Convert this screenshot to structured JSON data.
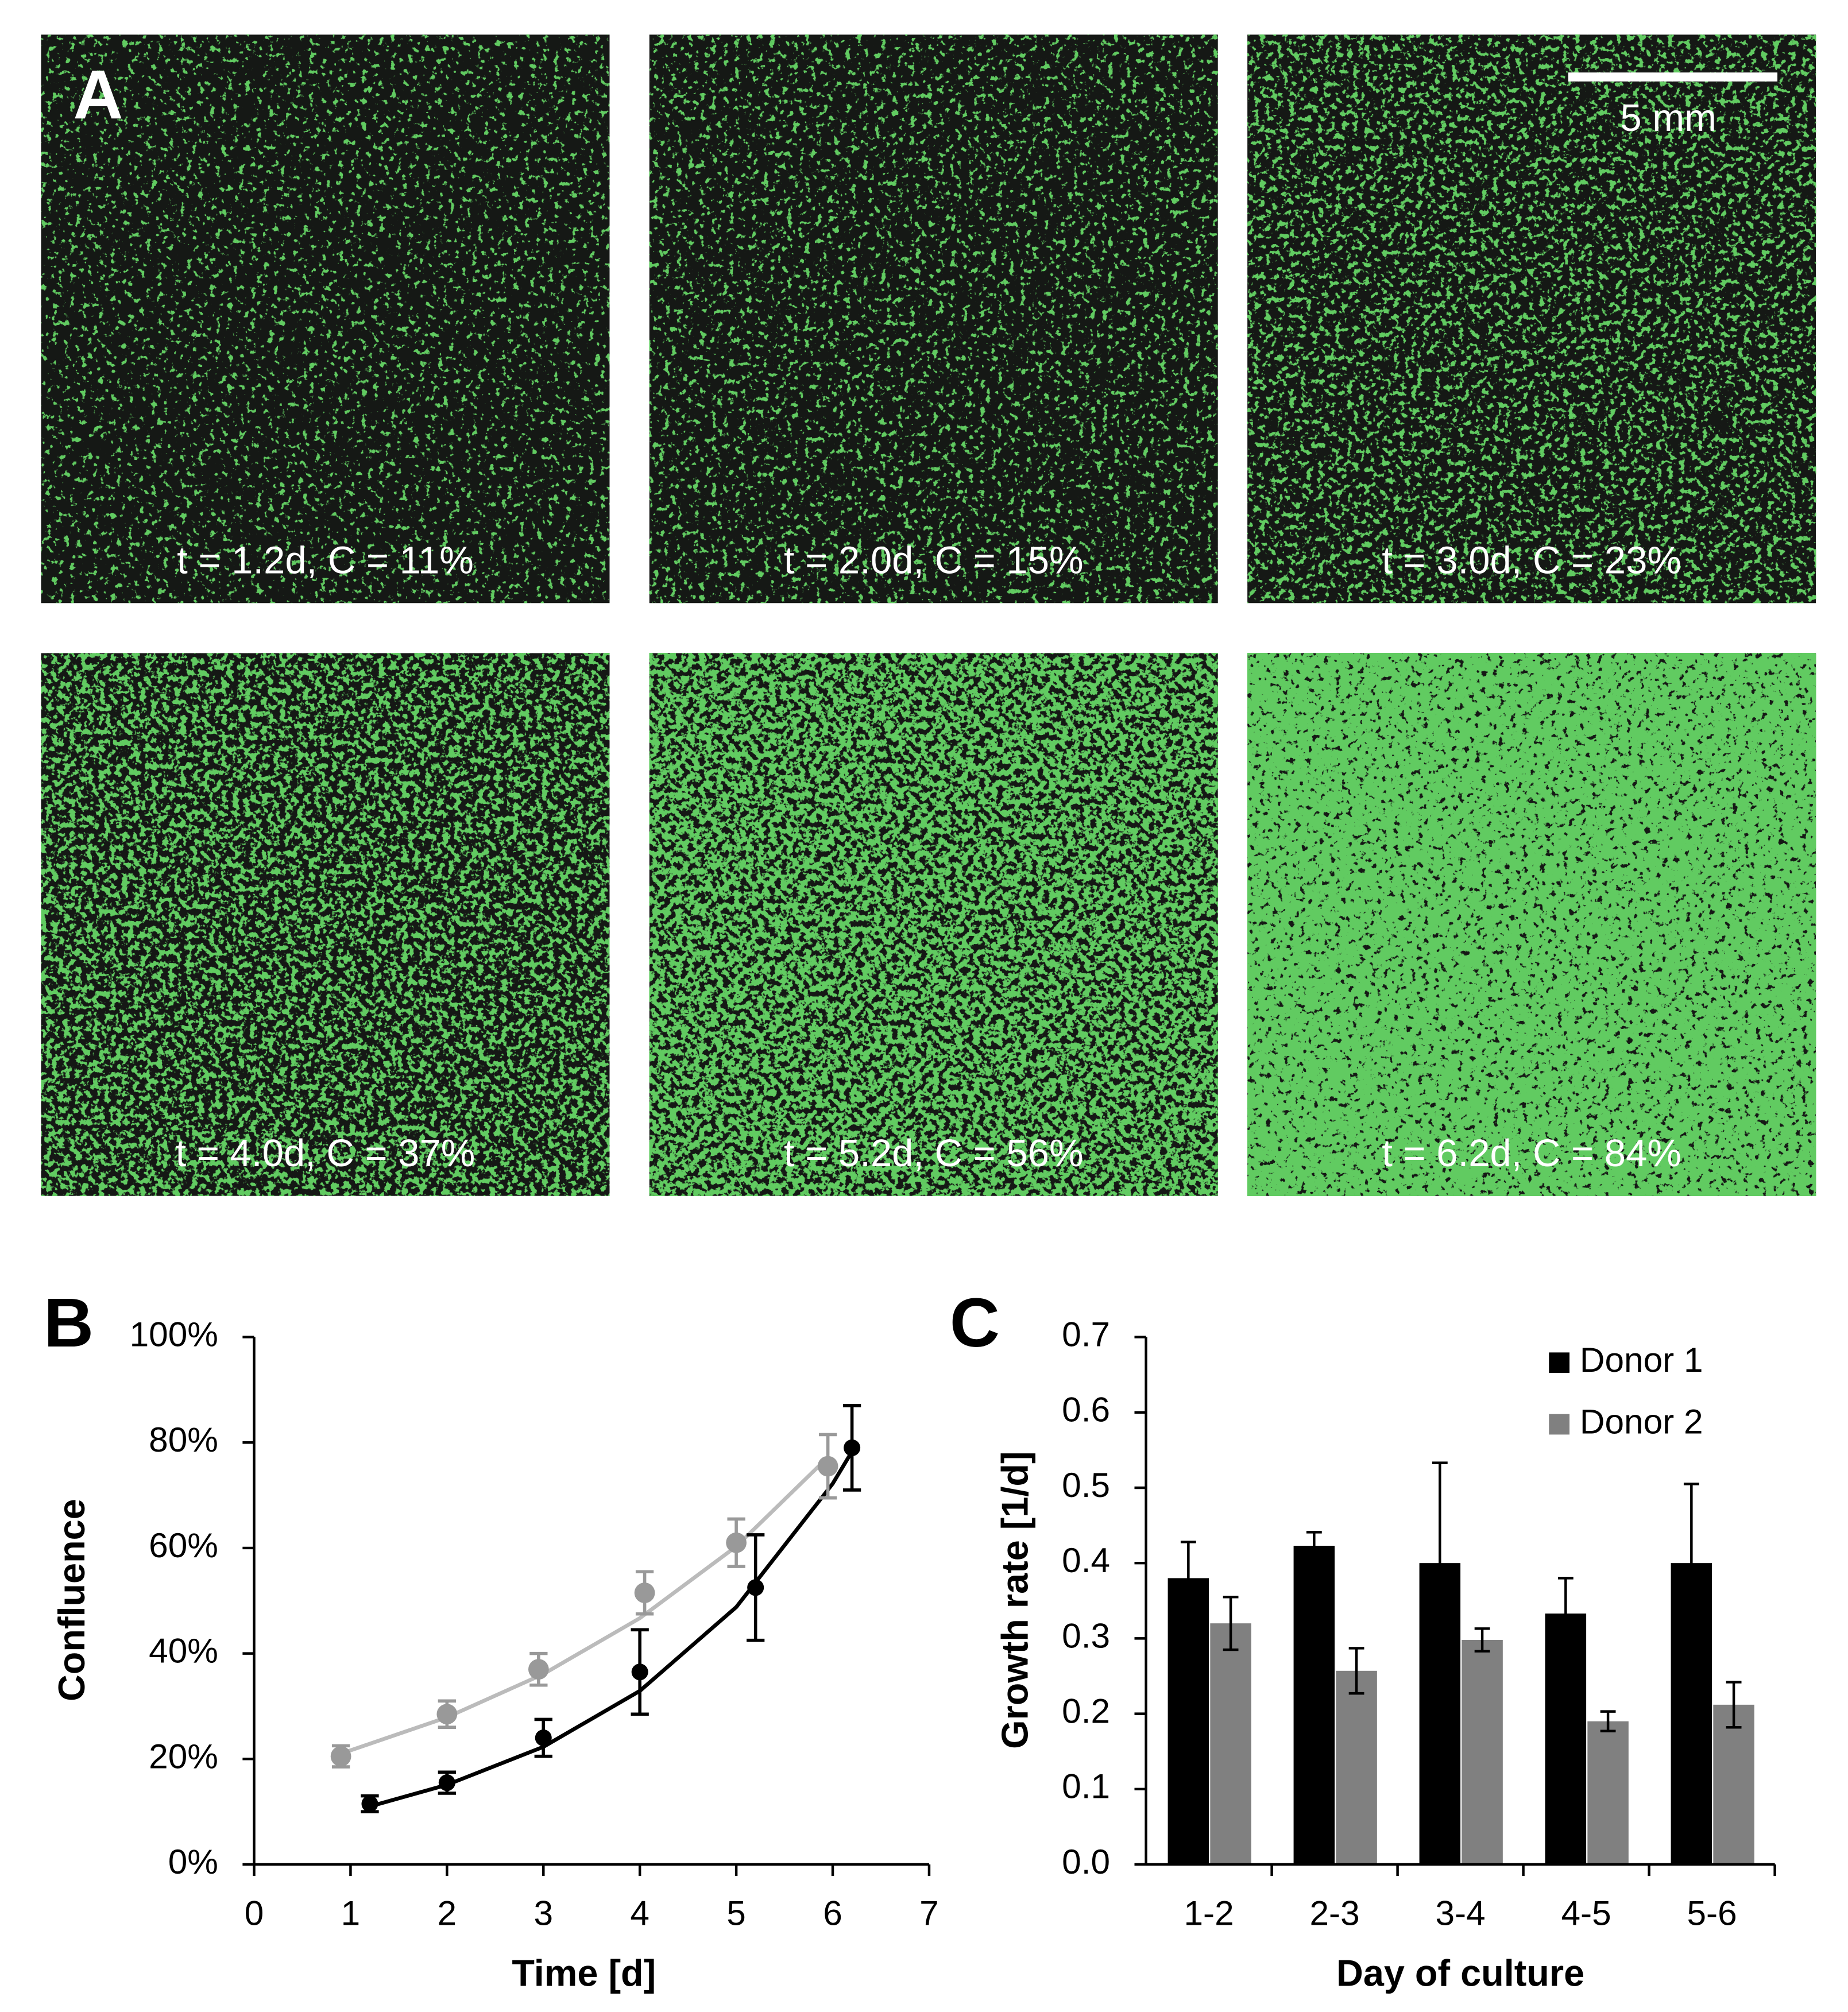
{
  "panel_a": {
    "label": "A",
    "scale_bar": "5 mm",
    "images": [
      {
        "label": "t = 1.2d, C = 11%"
      },
      {
        "label": "t = 2.0d, C = 15%"
      },
      {
        "label": "t = 3.0d, C = 23%"
      },
      {
        "label": "t = 4.0d, C = 37%"
      },
      {
        "label": "t = 5.2d, C = 56%"
      },
      {
        "label": "t = 6.2d, C = 84%"
      }
    ]
  },
  "chart_data": [
    {
      "type": "line",
      "panel_label": "B",
      "x_label": "Time [d]",
      "y_label": "Confluence",
      "xlim": [
        0,
        7
      ],
      "xticks": [
        0,
        1,
        2,
        3,
        4,
        5,
        6,
        7
      ],
      "ylim": [
        0,
        100
      ],
      "yticks": [
        {
          "value": 0,
          "label": "0%"
        },
        {
          "value": 20,
          "label": "20%"
        },
        {
          "value": 40,
          "label": "40%"
        },
        {
          "value": 60,
          "label": "60%"
        },
        {
          "value": 80,
          "label": "80%"
        },
        {
          "value": 100,
          "label": "100%"
        }
      ],
      "series": [
        {
          "color": "#000000",
          "x": [
            1.2,
            2,
            3,
            4,
            5.2,
            6.2
          ],
          "values": [
            11.5,
            15.5,
            24,
            36.5,
            52.5,
            79
          ],
          "errors": [
            1.5,
            2,
            3.5,
            8,
            10,
            8
          ]
        },
        {
          "color": "#999999",
          "x": [
            0.9,
            2,
            2.95,
            4.05,
            5,
            5.95
          ],
          "values": [
            20.5,
            28.5,
            37,
            51.5,
            61,
            75.5
          ],
          "errors": [
            2,
            2.5,
            3,
            4,
            4.5,
            6
          ]
        }
      ],
      "fits": [
        {
          "color": "#000000",
          "x": [
            1.2,
            2,
            3,
            4,
            5,
            6,
            6.2
          ],
          "values": [
            11,
            15.1,
            22.3,
            32.9,
            48.8,
            72.2,
            78.3
          ]
        },
        {
          "color": "#bbbbbb",
          "x": [
            0.9,
            2,
            3,
            4,
            5,
            5.95
          ],
          "values": [
            21,
            27.9,
            36.1,
            46.7,
            60.3,
            77.2
          ]
        }
      ]
    },
    {
      "type": "bar",
      "panel_label": "C",
      "x_label": "Day of culture",
      "y_label": "Growth rate [1/d]",
      "categories": [
        "1-2",
        "2-3",
        "3-4",
        "4-5",
        "5-6"
      ],
      "ylim": [
        0,
        0.7
      ],
      "yticks": [
        {
          "value": 0,
          "label": "0.0"
        },
        0.1,
        0.2,
        0.3,
        0.4,
        0.5,
        0.6,
        0.7
      ],
      "legend": "top-right",
      "series": [
        {
          "name": "Donor 1",
          "color": "#000000",
          "values": [
            0.38,
            0.423,
            0.4,
            0.333,
            0.4
          ],
          "errors": [
            0.048,
            0.018,
            0.133,
            0.047,
            0.105
          ]
        },
        {
          "name": "Donor 2",
          "color": "#808080",
          "values": [
            0.32,
            0.257,
            0.298,
            0.19,
            0.212
          ],
          "errors": [
            0.035,
            0.03,
            0.015,
            0.013,
            0.03
          ]
        }
      ]
    }
  ]
}
